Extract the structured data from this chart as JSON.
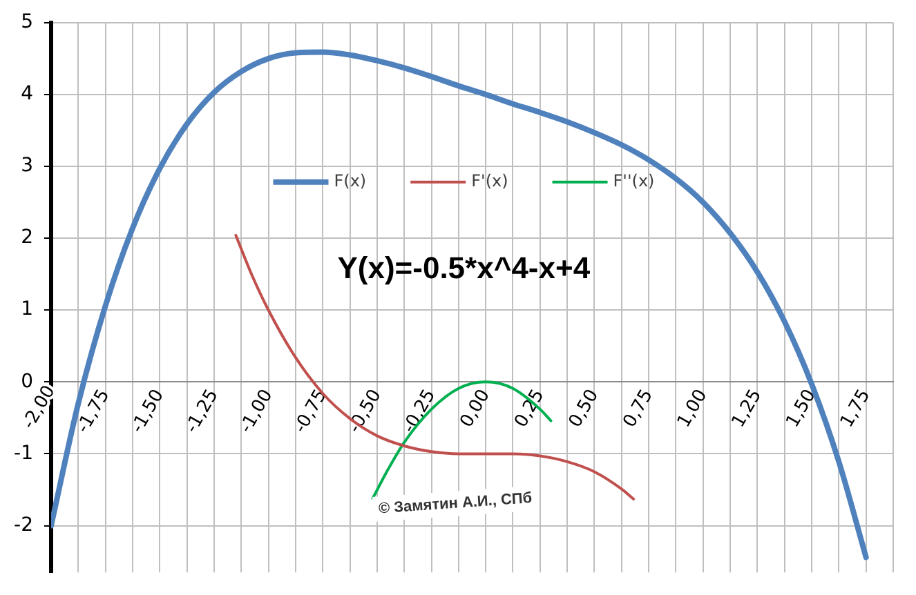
{
  "chart_data": {
    "type": "line",
    "title": "Y(x)=-0.5*x^4-x+4",
    "xlim": [
      -2,
      1.875
    ],
    "xticks": [
      {
        "value": -2,
        "label": "-2,00"
      },
      {
        "value": -1.875,
        "label": null
      },
      {
        "value": -1.75,
        "label": "-1,75"
      },
      {
        "value": -1.625,
        "label": null
      },
      {
        "value": -1.5,
        "label": "-1,50"
      },
      {
        "value": -1.375,
        "label": null
      },
      {
        "value": -1.25,
        "label": "-1,25"
      },
      {
        "value": -1.125,
        "label": null
      },
      {
        "value": -1,
        "label": "-1,00"
      },
      {
        "value": -0.875,
        "label": null
      },
      {
        "value": -0.75,
        "label": "-0,75"
      },
      {
        "value": -0.625,
        "label": null
      },
      {
        "value": -0.5,
        "label": "-0,50"
      },
      {
        "value": -0.375,
        "label": null
      },
      {
        "value": -0.25,
        "label": "-0,25"
      },
      {
        "value": -0.125,
        "label": null
      },
      {
        "value": 0,
        "label": "0,00"
      },
      {
        "value": 0.125,
        "label": null
      },
      {
        "value": 0.25,
        "label": "0,25"
      },
      {
        "value": 0.375,
        "label": null
      },
      {
        "value": 0.5,
        "label": "0,50"
      },
      {
        "value": 0.625,
        "label": null
      },
      {
        "value": 0.75,
        "label": "0,75"
      },
      {
        "value": 0.875,
        "label": null
      },
      {
        "value": 1,
        "label": "1,00"
      },
      {
        "value": 1.125,
        "label": null
      },
      {
        "value": 1.25,
        "label": "1,25"
      },
      {
        "value": 1.375,
        "label": null
      },
      {
        "value": 1.5,
        "label": "1,50"
      },
      {
        "value": 1.625,
        "label": null
      },
      {
        "value": 1.75,
        "label": "1,75"
      },
      {
        "value": 1.875,
        "label": null
      }
    ],
    "ylim": [
      -2.65,
      5
    ],
    "yticks": [
      -2,
      -1,
      0,
      1,
      2,
      3,
      4,
      5
    ],
    "grid": true,
    "legend": "top",
    "line_style": "solid",
    "marker": "none",
    "annotations": [
      "© Замятин А.И., СПб"
    ],
    "series": [
      {
        "name": "F(x)",
        "color": "#4f81bd",
        "x": [
          -2,
          -1.875,
          -1.75,
          -1.625,
          -1.5,
          -1.375,
          -1.25,
          -1.125,
          -1,
          -0.875,
          -0.75,
          -0.625,
          -0.5,
          -0.375,
          -0.25,
          -0.125,
          0,
          0.125,
          0.25,
          0.375,
          0.5,
          0.625,
          0.75,
          0.875,
          1,
          1.125,
          1.25,
          1.375,
          1.5,
          1.625,
          1.75
        ],
        "values": [
          -2,
          -0.3,
          1.06,
          2.14,
          2.97,
          3.59,
          4.03,
          4.32,
          4.5,
          4.58,
          4.59,
          4.55,
          4.47,
          4.37,
          4.25,
          4.12,
          4,
          3.87,
          3.75,
          3.62,
          3.47,
          3.3,
          3.09,
          2.83,
          2.5,
          2.07,
          1.53,
          0.84,
          -0.03,
          -1.11,
          -2.44
        ]
      },
      {
        "name": "F'(x)",
        "color": "#c0504d",
        "x": [
          -1.15,
          -1.075,
          -1,
          -0.875,
          -0.75,
          -0.625,
          -0.5,
          -0.375,
          -0.25,
          -0.125,
          0,
          0.125,
          0.25,
          0.375,
          0.5,
          0.625,
          0.68
        ],
        "values": [
          2.04,
          1.48,
          1,
          0.34,
          -0.16,
          -0.51,
          -0.75,
          -0.89,
          -0.97,
          -1,
          -1,
          -1,
          -1.03,
          -1.11,
          -1.25,
          -1.49,
          -1.63
        ]
      },
      {
        "name": "F''(x)",
        "color": "#00b050",
        "x": [
          -0.52,
          -0.45,
          -0.375,
          -0.25,
          -0.125,
          0,
          0.125,
          0.25,
          0.3
        ],
        "values": [
          -1.62,
          -1.22,
          -0.84,
          -0.38,
          -0.09,
          0,
          -0.09,
          -0.38,
          -0.54
        ]
      }
    ]
  }
}
